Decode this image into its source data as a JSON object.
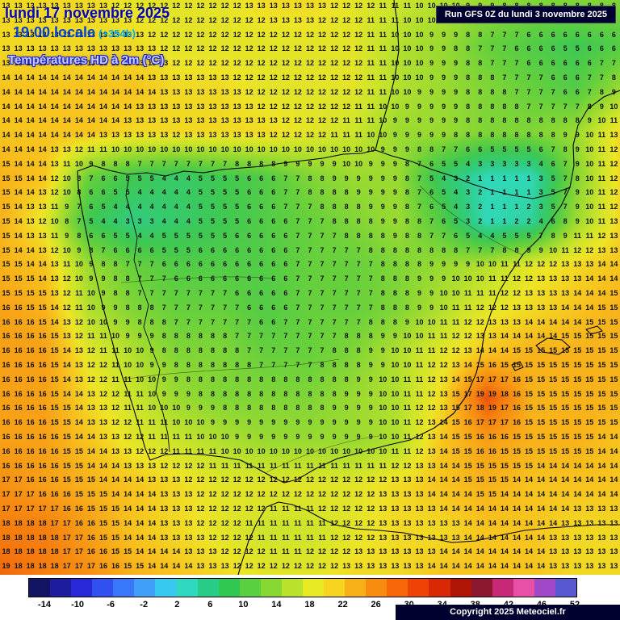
{
  "header": {
    "date_line": "lundi 17 novembre 2025",
    "time_line": "19:00 locale",
    "offset_label": "(+354h)",
    "variable_label": "Températures HD à 2m (°C)"
  },
  "run_box": {
    "text": "Run GFS 0Z du lundi 3 novembre 2025"
  },
  "copyright": {
    "text": "Copyright 2025 Meteociel.fr"
  },
  "chart_data": {
    "type": "heatmap",
    "title": "Températures HD à 2m (°C)",
    "model_run": "Run GFS 0Z du lundi 3 novembre 2025",
    "valid_time": "lundi 17 novembre 2025 19:00 locale (+354h)",
    "units": "°C",
    "region": "Iberian Peninsula",
    "grid_cols": 15,
    "grid_rows": 14,
    "values": [
      [
        13,
        13,
        13,
        12,
        12,
        12,
        13,
        13,
        12,
        11,
        10,
        9,
        8,
        8,
        8
      ],
      [
        13,
        13,
        13,
        13,
        12,
        12,
        12,
        12,
        12,
        10,
        9,
        7,
        6,
        5,
        6
      ],
      [
        14,
        14,
        14,
        14,
        13,
        13,
        12,
        12,
        12,
        10,
        9,
        8,
        7,
        6,
        9
      ],
      [
        14,
        14,
        14,
        13,
        13,
        13,
        13,
        12,
        11,
        9,
        9,
        8,
        8,
        9,
        13
      ],
      [
        15,
        14,
        7,
        5,
        4,
        5,
        6,
        8,
        9,
        9,
        4,
        1,
        1,
        8,
        13
      ],
      [
        15,
        12,
        5,
        3,
        4,
        5,
        6,
        7,
        8,
        9,
        6,
        1,
        2,
        9,
        13
      ],
      [
        15,
        14,
        9,
        7,
        6,
        6,
        6,
        7,
        7,
        8,
        9,
        10,
        12,
        13,
        14
      ],
      [
        16,
        15,
        10,
        8,
        7,
        7,
        6,
        7,
        7,
        8,
        10,
        12,
        13,
        14,
        15
      ],
      [
        16,
        16,
        12,
        10,
        8,
        8,
        7,
        7,
        8,
        10,
        12,
        14,
        15,
        15,
        15
      ],
      [
        16,
        16,
        13,
        11,
        9,
        8,
        8,
        8,
        9,
        10,
        13,
        20,
        15,
        15,
        15
      ],
      [
        16,
        16,
        14,
        12,
        11,
        10,
        9,
        9,
        9,
        10,
        14,
        16,
        15,
        15,
        14
      ],
      [
        17,
        16,
        15,
        14,
        13,
        12,
        12,
        12,
        12,
        13,
        14,
        15,
        14,
        14,
        14
      ],
      [
        18,
        18,
        16,
        14,
        13,
        12,
        11,
        11,
        12,
        13,
        13,
        14,
        14,
        13,
        13
      ],
      [
        19,
        18,
        17,
        15,
        14,
        13,
        12,
        12,
        13,
        13,
        14,
        14,
        14,
        13,
        13
      ]
    ],
    "render_grid": {
      "cols": 51,
      "rows": 40
    },
    "value_color_stops": [
      [
        -14,
        "#141478"
      ],
      [
        -10,
        "#2030c8"
      ],
      [
        -6,
        "#3a78f0"
      ],
      [
        -3,
        "#40a8f4"
      ],
      [
        -1,
        "#38ccec"
      ],
      [
        1,
        "#30d8b8"
      ],
      [
        3,
        "#30cc80"
      ],
      [
        5,
        "#3fc852"
      ],
      [
        7,
        "#66d03c"
      ],
      [
        9,
        "#9ada30"
      ],
      [
        11,
        "#cce42a"
      ],
      [
        12.5,
        "#eee426"
      ],
      [
        14,
        "#f8c41e"
      ],
      [
        16,
        "#f8a016"
      ],
      [
        18,
        "#f67e0e"
      ],
      [
        20,
        "#ec5208"
      ],
      [
        23,
        "#d22c06"
      ],
      [
        26,
        "#a61404"
      ]
    ],
    "colorbar": {
      "ticks": [
        "-14",
        "-10",
        "-6",
        "-2",
        "2",
        "6",
        "10",
        "14",
        "18",
        "22",
        "26",
        "30",
        "34",
        "38",
        "42",
        "46",
        "52"
      ],
      "colors": [
        "#141464",
        "#1c1c9c",
        "#2828d8",
        "#3050f0",
        "#3878f8",
        "#40a0f8",
        "#38c8f0",
        "#30d8c0",
        "#28cc88",
        "#30c850",
        "#58d040",
        "#88d834",
        "#b8e22c",
        "#e8ea24",
        "#f8d41e",
        "#f8b018",
        "#f88c10",
        "#f8660a",
        "#ee4206",
        "#d82806",
        "#b01404",
        "#8c1830",
        "#c82878",
        "#e850a8",
        "#a048c8",
        "#5858d0"
      ]
    }
  }
}
